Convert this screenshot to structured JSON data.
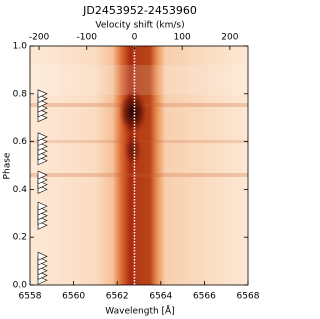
{
  "chart_data": {
    "type": "dynamic-spectrum",
    "title": "JD2453952-2453960",
    "x_label": "Wavelength [Å]",
    "x2_label": "Velocity shift (km/s)",
    "y_label": "Phase",
    "xlim": [
      6558,
      6568
    ],
    "xticks": [
      6558,
      6560,
      6562,
      6564,
      6566,
      6568
    ],
    "x2lim": [
      -219,
      238
    ],
    "x2ticks": [
      -200,
      -100,
      0,
      100,
      200
    ],
    "ylim": [
      0.0,
      1.0
    ],
    "yticks": [
      {
        "value": 0.0,
        "label": "0.0"
      },
      {
        "value": 0.2,
        "label": "0.2"
      },
      {
        "value": 0.4,
        "label": "0.4"
      },
      {
        "value": 0.6,
        "label": "0.6"
      },
      {
        "value": 0.8,
        "label": "0.8"
      },
      {
        "value": 1.0,
        "label": "1.0"
      }
    ],
    "marker_phases": [
      0.02,
      0.04,
      0.06,
      0.08,
      0.1,
      0.12,
      0.25,
      0.27,
      0.29,
      0.31,
      0.33,
      0.4,
      0.42,
      0.44,
      0.46,
      0.52,
      0.54,
      0.56,
      0.58,
      0.6,
      0.62,
      0.7,
      0.72,
      0.74,
      0.76,
      0.78,
      0.8
    ]
  }
}
